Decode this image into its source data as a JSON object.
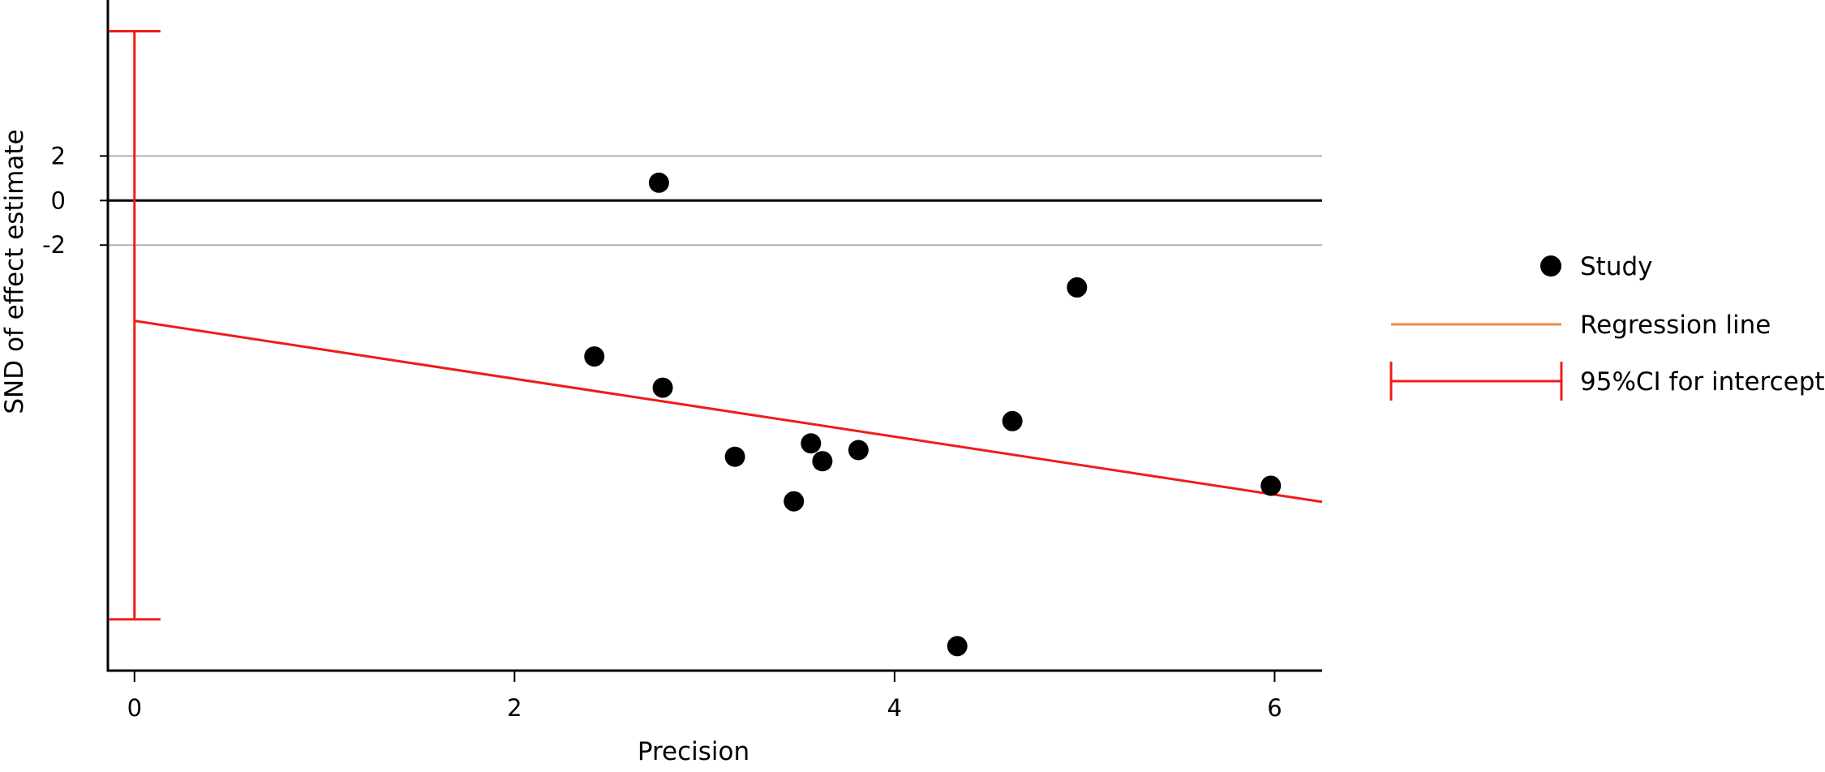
{
  "chart_data": {
    "type": "scatter",
    "title": "",
    "xlabel": "Precision",
    "ylabel": "SND of effect estimate",
    "xlim": [
      -0.14,
      6.25
    ],
    "ylim": [
      -21.1,
      9.0
    ],
    "x_ticks": [
      {
        "value": 0,
        "label": "0"
      },
      {
        "value": 2,
        "label": "2"
      },
      {
        "value": 4,
        "label": "4"
      },
      {
        "value": 6,
        "label": "6"
      }
    ],
    "y_ticks": [
      {
        "value": 2,
        "label": "2"
      },
      {
        "value": 0,
        "label": "0"
      },
      {
        "value": -2,
        "label": "-2"
      }
    ],
    "reference_lines": [
      {
        "y": 2,
        "color": "#b3b3b3"
      },
      {
        "y": 0,
        "color": "#000000"
      },
      {
        "y": -2,
        "color": "#b3b3b3"
      }
    ],
    "series": [
      {
        "name": "Study",
        "color": "#000000",
        "points": [
          {
            "x": 2.76,
            "y": 0.8
          },
          {
            "x": 2.42,
            "y": -7.0
          },
          {
            "x": 2.78,
            "y": -8.4
          },
          {
            "x": 3.16,
            "y": -11.5
          },
          {
            "x": 3.47,
            "y": -13.5
          },
          {
            "x": 3.56,
            "y": -10.9
          },
          {
            "x": 3.62,
            "y": -11.7
          },
          {
            "x": 3.81,
            "y": -11.2
          },
          {
            "x": 4.33,
            "y": -20.0
          },
          {
            "x": 4.62,
            "y": -9.9
          },
          {
            "x": 4.96,
            "y": -3.9
          },
          {
            "x": 5.98,
            "y": -12.8
          }
        ]
      }
    ],
    "regression_line": {
      "name": "Regression line",
      "color": "#ee1c1c",
      "intercept": -5.4,
      "slope": -1.3
    },
    "intercept_ci": {
      "name": "95%CI for intercept",
      "color": "#ee1c1c",
      "x": 0,
      "lower": -18.8,
      "upper": 7.6
    },
    "legend": {
      "position": "right",
      "entries": [
        {
          "label": "Study",
          "marker": "dot",
          "color": "#000000"
        },
        {
          "label": "Regression line",
          "marker": "line",
          "color": "#f08a4b"
        },
        {
          "label": "95%CI for intercept",
          "marker": "errorbar",
          "color": "#ee1c1c"
        }
      ]
    },
    "grid": false
  }
}
